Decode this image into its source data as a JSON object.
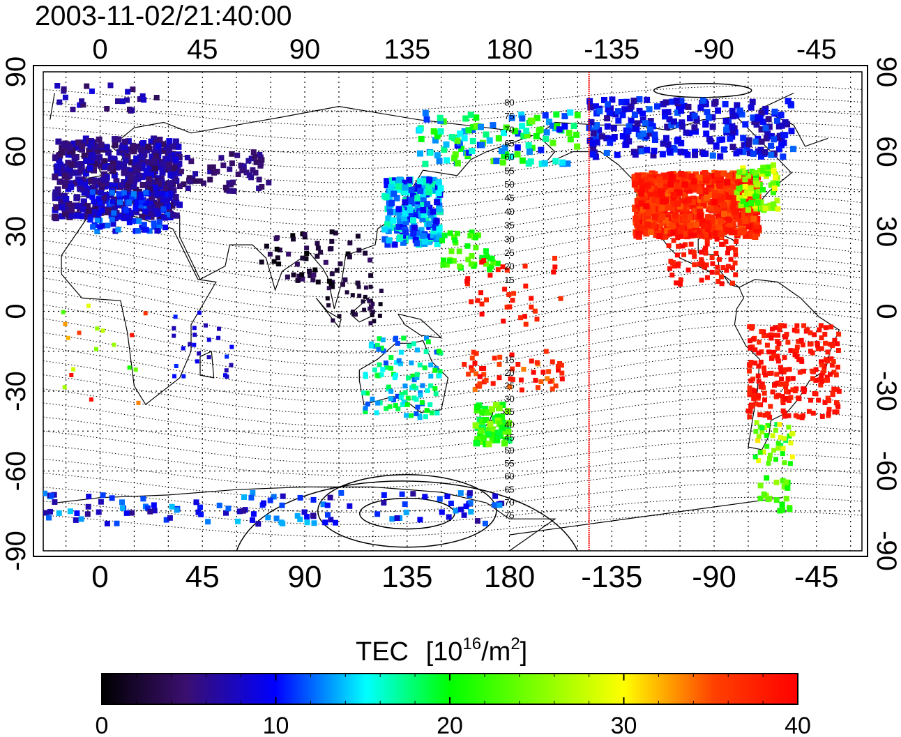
{
  "title": "2003-11-02/21:40:00",
  "lon_ticks": [
    "0",
    "45",
    "90",
    "135",
    "180",
    "-135",
    "-90",
    "-45"
  ],
  "lat_ticks": [
    "90",
    "60",
    "30",
    "0",
    "-30",
    "-60",
    "-90"
  ],
  "contour_labels": [
    "80",
    "75",
    "70",
    "65",
    "60",
    "55",
    "50",
    "45",
    "40",
    "35",
    "30",
    "25",
    "20",
    "15",
    "15",
    "20",
    "25",
    "30",
    "35",
    "40",
    "45",
    "50",
    "55",
    "60",
    "65",
    "70",
    "75"
  ],
  "colorbar": {
    "title": "TEC",
    "unit_base": "[10",
    "unit_exp": "16",
    "unit_mid": "/m",
    "unit_exp2": "2",
    "unit_end": "]",
    "ticks": [
      "0",
      "10",
      "20",
      "30",
      "40"
    ],
    "range": [
      0,
      40
    ],
    "colors": [
      "#000000",
      "#3a0f6e",
      "#0000ff",
      "#00ffff",
      "#00ff00",
      "#ffff00",
      "#ff0000"
    ]
  },
  "map": {
    "lon_range": [
      -25,
      335
    ],
    "lat_range": [
      -90,
      90
    ],
    "terminator_lon": -145,
    "terminator_color": "#ff0000"
  }
}
